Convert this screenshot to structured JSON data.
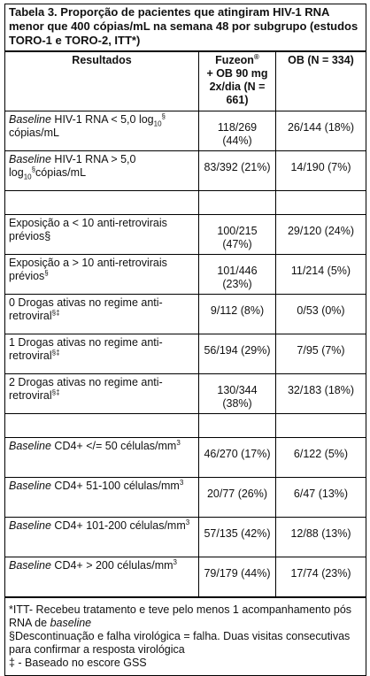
{
  "title": "Tabela 3. Proporção de pacientes que atingiram HIV-1 RNA menor que 400 cópias/mL na semana 48 por subgrupo (estudos TORO-1 e TORO-2, ITT*)",
  "table": {
    "header": {
      "col0": "Resultados",
      "col1": [
        {
          "text": "Fuzeon"
        },
        {
          "sup": "®"
        },
        {
          "text": "+ OB 90 mg 2x/dia (N = 661)"
        }
      ],
      "col2": "OB (N = 334)"
    },
    "groups": [
      [
        {
          "label": [
            {
              "italic": "Baseline"
            },
            {
              "text": " HIV-1 RNA < 5,0 log"
            },
            {
              "sub": "10"
            },
            {
              "sup": "§"
            },
            {
              "text": " cópias/mL"
            }
          ],
          "fuzeon": "118/269 (44%)",
          "ob": "26/144 (18%)"
        },
        {
          "label": [
            {
              "italic": "Baseline"
            },
            {
              "text": " HIV-1 RNA > 5,0 log"
            },
            {
              "sub": "10"
            },
            {
              "sup": "§"
            },
            {
              "text": "cópias/mL"
            }
          ],
          "fuzeon": "83/392 (21%)",
          "ob": "14/190 (7%)"
        }
      ],
      [
        {
          "label": [
            {
              "text": "Exposição a < 10 anti-retrovirais prévios§"
            }
          ],
          "fuzeon": "100/215 (47%)",
          "ob": "29/120 (24%)"
        },
        {
          "label": [
            {
              "text": "Exposição a > 10 anti-retrovirais prévios"
            },
            {
              "sup": "§"
            }
          ],
          "fuzeon": "101/446 (23%)",
          "ob": "11/214 (5%)"
        },
        {
          "label": [
            {
              "text": "0 Drogas ativas no regime anti-retroviral"
            },
            {
              "sup": "§‡"
            }
          ],
          "fuzeon": "9/112 (8%)",
          "ob": "0/53 (0%)"
        },
        {
          "label": [
            {
              "text": "1 Drogas ativas no regime anti-retroviral"
            },
            {
              "sup": "§‡"
            }
          ],
          "fuzeon": "56/194 (29%)",
          "ob": "7/95 (7%)"
        },
        {
          "label": [
            {
              "text": "2 Drogas ativas no regime anti-retroviral"
            },
            {
              "sup": "§‡"
            }
          ],
          "fuzeon": "130/344 (38%)",
          "ob": "32/183 (18%)"
        }
      ],
      [
        {
          "label": [
            {
              "italic": "Baseline"
            },
            {
              "text": " CD4+ </= 50 células/mm"
            },
            {
              "sup": "3"
            }
          ],
          "fuzeon": "46/270 (17%)",
          "ob": "6/122 (5%)"
        },
        {
          "label": [
            {
              "italic": "Baseline"
            },
            {
              "text": " CD4+ 51-100 células/mm"
            },
            {
              "sup": "3"
            }
          ],
          "fuzeon": "20/77 (26%)",
          "ob": "6/47 (13%)"
        },
        {
          "label": [
            {
              "italic": "Baseline"
            },
            {
              "text": " CD4+ 101-200 células/mm"
            },
            {
              "sup": "3"
            }
          ],
          "fuzeon": "57/135 (42%)",
          "ob": "12/88 (13%)"
        },
        {
          "label": [
            {
              "italic": "Baseline"
            },
            {
              "text": " CD4+ > 200 células/mm"
            },
            {
              "sup": "3"
            }
          ],
          "fuzeon": "79/179 (44%)",
          "ob": "17/74 (23%)"
        }
      ]
    ],
    "footnotes": [
      [
        {
          "text": "*ITT- Recebeu tratamento e teve pelo menos 1 acompanhamento pós RNA de "
        },
        {
          "italic": "baseline"
        }
      ],
      [
        {
          "text": "§Descontinuação e falha virológica = falha. Duas visitas consecutivas para confirmar a resposta virológica"
        }
      ],
      [
        {
          "text": "‡ - Baseado no escore GSS"
        }
      ]
    ]
  }
}
